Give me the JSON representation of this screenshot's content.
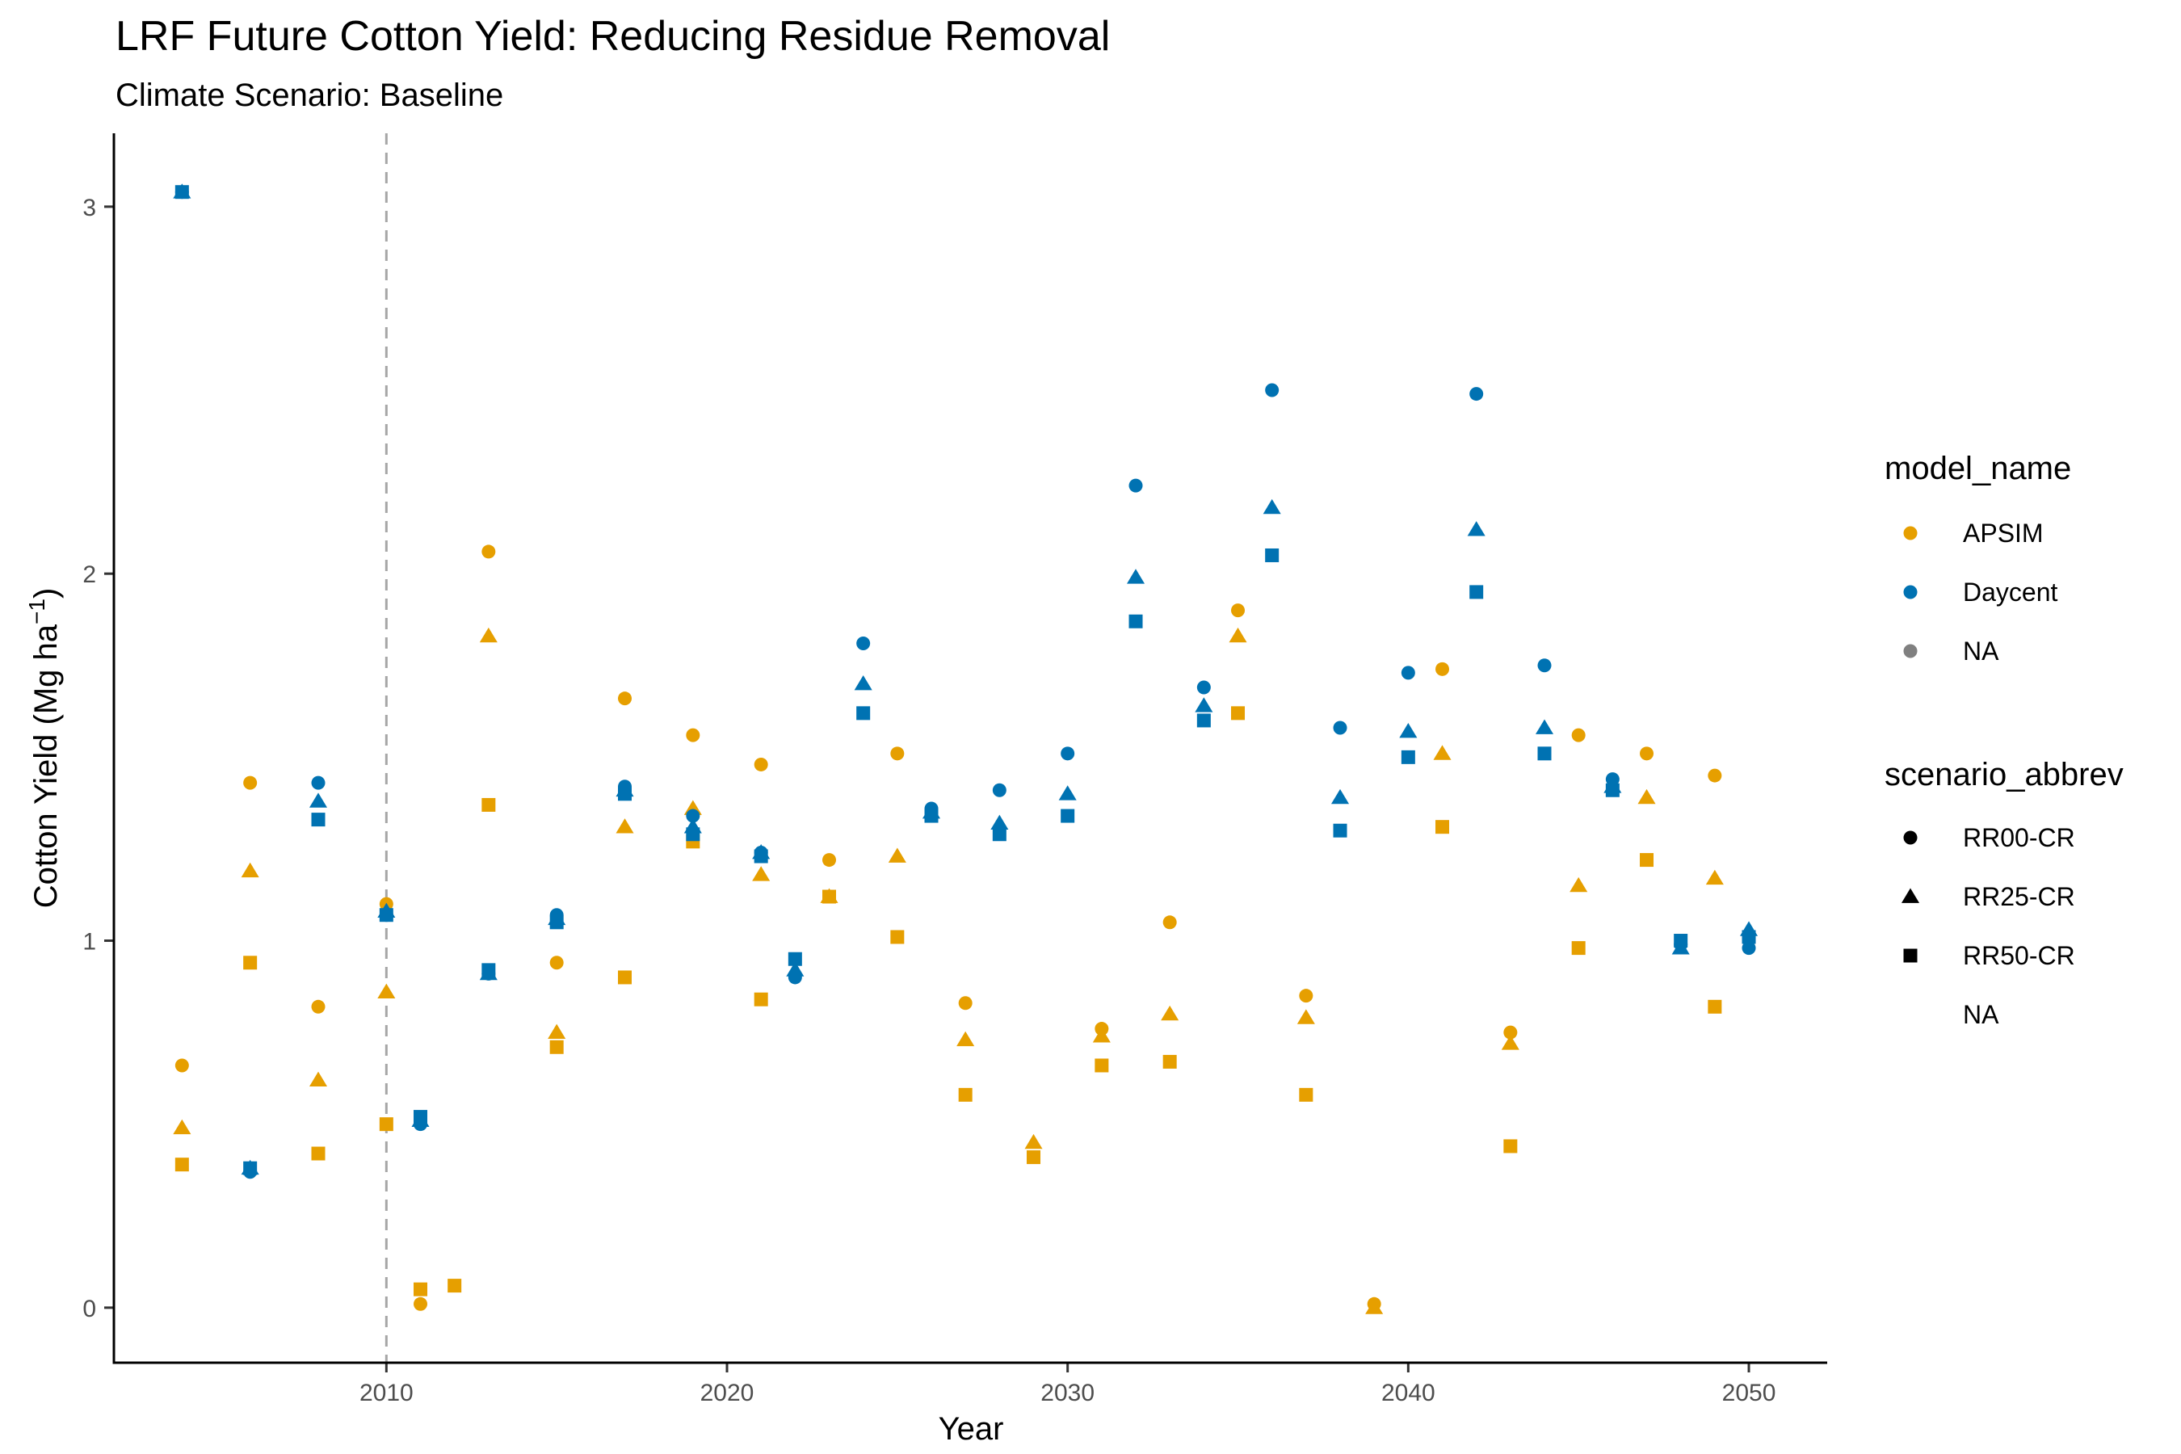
{
  "chart_data": {
    "type": "scatter",
    "title": "LRF Future Cotton Yield: Reducing Residue Removal",
    "subtitle": "Climate Scenario: Baseline",
    "xlabel": "Year",
    "ylabel": {
      "main": "Cotton Yield (Mg ha",
      "superscript": "−1",
      "close": ")"
    },
    "xlim": [
      2002,
      2052.3
    ],
    "ylim": [
      -0.15,
      3.2
    ],
    "xticks": [
      2010,
      2020,
      2030,
      2040,
      2050
    ],
    "yticks": [
      0,
      1,
      2,
      3
    ],
    "reference_line": {
      "x": 2010,
      "style": "dashed"
    },
    "grid": false,
    "legend_position": "right",
    "colors": {
      "APSIM": "#E69F00",
      "Daycent": "#0072B2",
      "NA": "#808080"
    },
    "legends": {
      "model_name": {
        "title": "model_name",
        "entries": [
          {
            "label": "APSIM",
            "color": "#E69F00"
          },
          {
            "label": "Daycent",
            "color": "#0072B2"
          },
          {
            "label": "NA",
            "color": "#808080"
          }
        ]
      },
      "scenario_abbrev": {
        "title": "scenario_abbrev",
        "entries": [
          {
            "label": "RR00-CR",
            "shape": "circle"
          },
          {
            "label": "RR25-CR",
            "shape": "triangle"
          },
          {
            "label": "RR50-CR",
            "shape": "square"
          },
          {
            "label": "NA",
            "shape": "none"
          }
        ]
      }
    },
    "series": [
      {
        "model": "APSIM",
        "scenario": "RR00-CR",
        "x": [
          2004,
          2006,
          2008,
          2010,
          2011,
          2013,
          2015,
          2017,
          2019,
          2021,
          2023,
          2025,
          2027,
          2031,
          2033,
          2035,
          2037,
          2039,
          2041,
          2043,
          2045,
          2047,
          2049
        ],
        "y": [
          0.66,
          1.43,
          0.82,
          1.1,
          0.01,
          2.06,
          0.94,
          1.66,
          1.56,
          1.48,
          1.22,
          1.51,
          0.83,
          0.76,
          1.05,
          1.9,
          0.85,
          0.01,
          1.74,
          0.75,
          1.56,
          1.51,
          1.45
        ]
      },
      {
        "model": "APSIM",
        "scenario": "RR25-CR",
        "x": [
          2004,
          2006,
          2008,
          2010,
          2013,
          2015,
          2017,
          2019,
          2021,
          2023,
          2025,
          2027,
          2029,
          2031,
          2033,
          2035,
          2037,
          2039,
          2041,
          2043,
          2045,
          2047,
          2049
        ],
        "y": [
          0.49,
          1.19,
          0.62,
          0.86,
          1.83,
          0.75,
          1.31,
          1.36,
          1.18,
          1.12,
          1.23,
          0.73,
          0.45,
          0.74,
          0.8,
          1.83,
          0.79,
          0.0,
          1.51,
          0.72,
          1.15,
          1.39,
          1.17
        ]
      },
      {
        "model": "APSIM",
        "scenario": "RR50-CR",
        "x": [
          2004,
          2006,
          2008,
          2010,
          2011,
          2012,
          2013,
          2015,
          2017,
          2019,
          2021,
          2023,
          2025,
          2027,
          2029,
          2031,
          2033,
          2035,
          2037,
          2041,
          2043,
          2045,
          2047,
          2049
        ],
        "y": [
          0.39,
          0.94,
          0.42,
          0.5,
          0.05,
          0.06,
          1.37,
          0.71,
          0.9,
          1.27,
          0.84,
          1.12,
          1.01,
          0.58,
          0.41,
          0.66,
          0.67,
          1.62,
          0.58,
          1.31,
          0.44,
          0.98,
          1.22,
          0.82
        ]
      },
      {
        "model": "Daycent",
        "scenario": "RR00-CR",
        "x": [
          2004,
          2006,
          2008,
          2010,
          2011,
          2013,
          2015,
          2017,
          2019,
          2021,
          2022,
          2024,
          2026,
          2028,
          2030,
          2032,
          2034,
          2036,
          2038,
          2040,
          2042,
          2044,
          2046,
          2048,
          2050
        ],
        "y": [
          3.04,
          0.37,
          1.43,
          1.07,
          0.5,
          0.91,
          1.07,
          1.42,
          1.34,
          1.24,
          0.9,
          1.81,
          1.36,
          1.41,
          1.51,
          2.24,
          1.69,
          2.5,
          1.58,
          1.73,
          2.49,
          1.75,
          1.44,
          0.99,
          0.98
        ]
      },
      {
        "model": "Daycent",
        "scenario": "RR25-CR",
        "x": [
          2004,
          2006,
          2008,
          2010,
          2011,
          2013,
          2015,
          2017,
          2019,
          2021,
          2022,
          2024,
          2026,
          2028,
          2030,
          2032,
          2034,
          2036,
          2038,
          2040,
          2042,
          2044,
          2046,
          2048,
          2050
        ],
        "y": [
          3.04,
          0.38,
          1.38,
          1.08,
          0.51,
          0.91,
          1.06,
          1.41,
          1.31,
          1.24,
          0.92,
          1.7,
          1.35,
          1.32,
          1.4,
          1.99,
          1.64,
          2.18,
          1.39,
          1.57,
          2.12,
          1.58,
          1.42,
          0.98,
          1.03
        ]
      },
      {
        "model": "Daycent",
        "scenario": "RR50-CR",
        "x": [
          2004,
          2006,
          2008,
          2010,
          2011,
          2013,
          2015,
          2017,
          2019,
          2021,
          2022,
          2024,
          2026,
          2028,
          2030,
          2032,
          2034,
          2036,
          2038,
          2040,
          2042,
          2044,
          2046,
          2048,
          2050
        ],
        "y": [
          3.04,
          0.38,
          1.33,
          1.07,
          0.52,
          0.92,
          1.05,
          1.4,
          1.29,
          1.23,
          0.95,
          1.62,
          1.34,
          1.29,
          1.34,
          1.87,
          1.6,
          2.05,
          1.3,
          1.5,
          1.95,
          1.51,
          1.41,
          1.0,
          1.01
        ]
      }
    ]
  }
}
